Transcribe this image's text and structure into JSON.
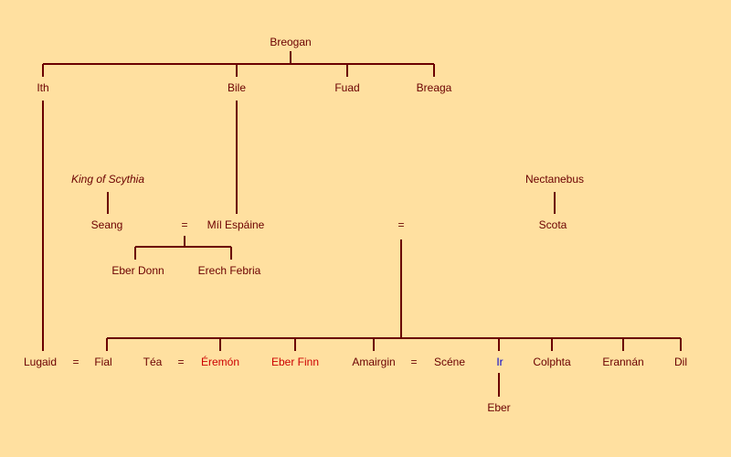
{
  "colors": {
    "background": "#ffe0a0",
    "line": "#6b0000",
    "text_default": "#6b0000",
    "text_red": "#cc0000",
    "text_blue": "#0000cc"
  },
  "people": {
    "breogan": "Breogan",
    "ith": "Ith",
    "bile": "Bile",
    "fuad": "Fuad",
    "breaga": "Breaga",
    "king_of_scythia": "King of Scythia",
    "nectanebus": "Nectanebus",
    "seang": "Seang",
    "mil_espaine": "Míl Espáine",
    "scota": "Scota",
    "eber_donn": "Eber Donn",
    "erech_febria": "Erech Febria",
    "lugaid": "Lugaid",
    "fial": "Fial",
    "tea": "Téa",
    "eremon": "Éremón",
    "eber_finn": "Eber Finn",
    "amairgin": "Amairgin",
    "scene": "Scéne",
    "ir": "Ir",
    "colphta": "Colphta",
    "erannan": "Erannán",
    "dil": "Dil",
    "eber": "Eber"
  },
  "symbols": {
    "marriage": "="
  }
}
